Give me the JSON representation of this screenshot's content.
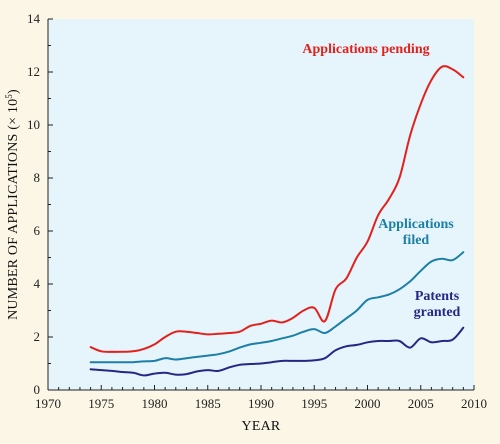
{
  "chart_data": {
    "type": "line",
    "title": "",
    "xlabel": "YEAR",
    "ylabel": "NUMBER OF APPLICATIONS (× 10",
    "ylabel_exponent": "5",
    "ylabel_close": ")",
    "xlim": [
      1970,
      2010
    ],
    "ylim": [
      0,
      14
    ],
    "x_ticks": [
      1970,
      1975,
      1980,
      1985,
      1990,
      1995,
      2000,
      2005,
      2010
    ],
    "y_ticks": [
      0,
      2,
      4,
      6,
      8,
      10,
      12,
      14
    ],
    "grid": false,
    "background_color": "#e6f4fb",
    "page_color": "#fcf6e6",
    "series": [
      {
        "name": "Applications pending",
        "label_lines": [
          "Applications pending"
        ],
        "color": "#e2211c",
        "x": [
          1974,
          1975,
          1976,
          1977,
          1978,
          1979,
          1980,
          1981,
          1982,
          1983,
          1984,
          1985,
          1986,
          1987,
          1988,
          1989,
          1990,
          1991,
          1992,
          1993,
          1994,
          1995,
          1996,
          1997,
          1998,
          1999,
          2000,
          2001,
          2002,
          2003,
          2004,
          2005,
          2006,
          2007,
          2008,
          2009
        ],
        "y": [
          1.62,
          1.46,
          1.44,
          1.44,
          1.46,
          1.55,
          1.72,
          2.0,
          2.2,
          2.2,
          2.15,
          2.1,
          2.12,
          2.15,
          2.2,
          2.42,
          2.5,
          2.62,
          2.55,
          2.72,
          3.0,
          3.1,
          2.6,
          3.8,
          4.2,
          5.0,
          5.6,
          6.6,
          7.2,
          8.0,
          9.6,
          10.8,
          11.7,
          12.2,
          12.1,
          11.8
        ]
      },
      {
        "name": "Applications filed",
        "label_lines": [
          "Applications",
          "filed"
        ],
        "color": "#1c7fa6",
        "x": [
          1974,
          1975,
          1976,
          1977,
          1978,
          1979,
          1980,
          1981,
          1982,
          1983,
          1984,
          1985,
          1986,
          1987,
          1988,
          1989,
          1990,
          1991,
          1992,
          1993,
          1994,
          1995,
          1996,
          1997,
          1998,
          1999,
          2000,
          2001,
          2002,
          2003,
          2004,
          2005,
          2006,
          2007,
          2008,
          2009
        ],
        "y": [
          1.05,
          1.05,
          1.05,
          1.05,
          1.05,
          1.08,
          1.1,
          1.2,
          1.15,
          1.2,
          1.25,
          1.3,
          1.35,
          1.45,
          1.6,
          1.72,
          1.78,
          1.85,
          1.95,
          2.05,
          2.2,
          2.3,
          2.15,
          2.4,
          2.7,
          3.0,
          3.4,
          3.5,
          3.6,
          3.8,
          4.1,
          4.5,
          4.85,
          4.95,
          4.9,
          5.2
        ]
      },
      {
        "name": "Patents granted",
        "label_lines": [
          "Patents",
          "granted"
        ],
        "color": "#252785",
        "x": [
          1974,
          1975,
          1976,
          1977,
          1978,
          1979,
          1980,
          1981,
          1982,
          1983,
          1984,
          1985,
          1986,
          1987,
          1988,
          1989,
          1990,
          1991,
          1992,
          1993,
          1994,
          1995,
          1996,
          1997,
          1998,
          1999,
          2000,
          2001,
          2002,
          2003,
          2004,
          2005,
          2006,
          2007,
          2008,
          2009
        ],
        "y": [
          0.78,
          0.75,
          0.72,
          0.68,
          0.65,
          0.55,
          0.62,
          0.65,
          0.58,
          0.6,
          0.7,
          0.75,
          0.72,
          0.85,
          0.95,
          0.98,
          1.0,
          1.05,
          1.1,
          1.1,
          1.1,
          1.12,
          1.2,
          1.5,
          1.65,
          1.7,
          1.8,
          1.85,
          1.85,
          1.85,
          1.6,
          1.95,
          1.8,
          1.85,
          1.9,
          2.35
        ]
      }
    ]
  }
}
